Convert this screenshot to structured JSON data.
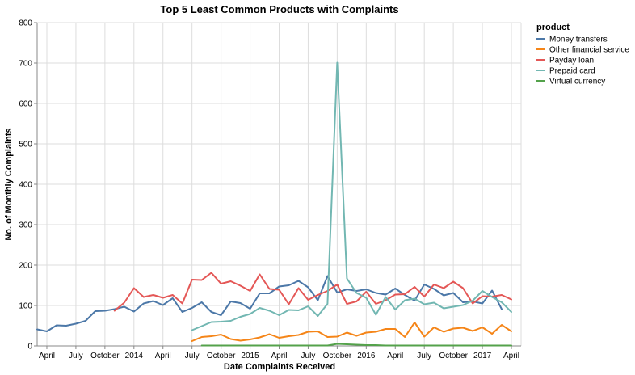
{
  "chart_data": {
    "type": "line",
    "title": "Top 5 Least Common Products with Complaints",
    "xlabel": "Date Complaints Received",
    "ylabel": "No. of Monthly Complaints",
    "ylim": [
      0,
      800
    ],
    "yticks": [
      0,
      100,
      200,
      300,
      400,
      500,
      600,
      700,
      800
    ],
    "xlim": [
      "2013-03",
      "2017-05"
    ],
    "xticks": [
      {
        "date": "2013-04",
        "label": "April"
      },
      {
        "date": "2013-07",
        "label": "July"
      },
      {
        "date": "2013-10",
        "label": "October"
      },
      {
        "date": "2014-01",
        "label": "2014"
      },
      {
        "date": "2014-04",
        "label": "April"
      },
      {
        "date": "2014-07",
        "label": "July"
      },
      {
        "date": "2014-10",
        "label": "October"
      },
      {
        "date": "2015-01",
        "label": "2015"
      },
      {
        "date": "2015-04",
        "label": "April"
      },
      {
        "date": "2015-07",
        "label": "July"
      },
      {
        "date": "2015-10",
        "label": "October"
      },
      {
        "date": "2016-01",
        "label": "2016"
      },
      {
        "date": "2016-04",
        "label": "April"
      },
      {
        "date": "2016-07",
        "label": "July"
      },
      {
        "date": "2016-10",
        "label": "October"
      },
      {
        "date": "2017-01",
        "label": "2017"
      },
      {
        "date": "2017-04",
        "label": "April"
      }
    ],
    "grid": true,
    "legend": {
      "title": "product",
      "position": "right"
    },
    "series": [
      {
        "name": "Money transfers",
        "color": "#4c78a8",
        "start": "2013-03",
        "values": [
          41,
          36,
          51,
          50,
          55,
          62,
          86,
          87,
          91,
          97,
          85,
          105,
          111,
          101,
          118,
          84,
          94,
          108,
          84,
          76,
          110,
          106,
          92,
          130,
          130,
          147,
          150,
          161,
          145,
          113,
          173,
          132,
          140,
          136,
          140,
          131,
          127,
          142,
          126,
          112,
          152,
          141,
          125,
          131,
          108,
          110,
          105,
          137,
          91
        ]
      },
      {
        "name": "Other financial service",
        "color": "#f58518",
        "start": "2014-07",
        "values": [
          12,
          22,
          24,
          28,
          17,
          13,
          16,
          21,
          29,
          20,
          24,
          27,
          35,
          36,
          22,
          23,
          33,
          25,
          33,
          35,
          42,
          42,
          22,
          58,
          23,
          46,
          35,
          43,
          45,
          37,
          46,
          30,
          52,
          36
        ]
      },
      {
        "name": "Payday loan",
        "color": "#e45756",
        "start": "2013-11",
        "values": [
          87,
          107,
          143,
          121,
          126,
          119,
          126,
          105,
          164,
          163,
          181,
          154,
          160,
          149,
          136,
          177,
          141,
          139,
          103,
          143,
          114,
          126,
          136,
          152,
          104,
          110,
          134,
          104,
          113,
          127,
          128,
          146,
          122,
          152,
          143,
          159,
          143,
          105,
          123,
          122,
          126,
          115
        ]
      },
      {
        "name": "Prepaid card",
        "color": "#72b7b2",
        "start": "2014-07",
        "values": [
          39,
          49,
          59,
          60,
          62,
          72,
          79,
          94,
          87,
          76,
          89,
          88,
          98,
          74,
          104,
          701,
          167,
          131,
          119,
          77,
          121,
          90,
          113,
          117,
          103,
          107,
          93,
          97,
          101,
          112,
          136,
          121,
          108,
          84
        ]
      },
      {
        "name": "Virtual currency",
        "color": "#54a24b",
        "start": "2014-08",
        "values": [
          1,
          1,
          1,
          1,
          1,
          1,
          1,
          1,
          1,
          1,
          1,
          1,
          1,
          1,
          5,
          4,
          3,
          2,
          2,
          1,
          1,
          1,
          1,
          1,
          1,
          1,
          1,
          1,
          1,
          1,
          1,
          1,
          1
        ]
      }
    ]
  }
}
